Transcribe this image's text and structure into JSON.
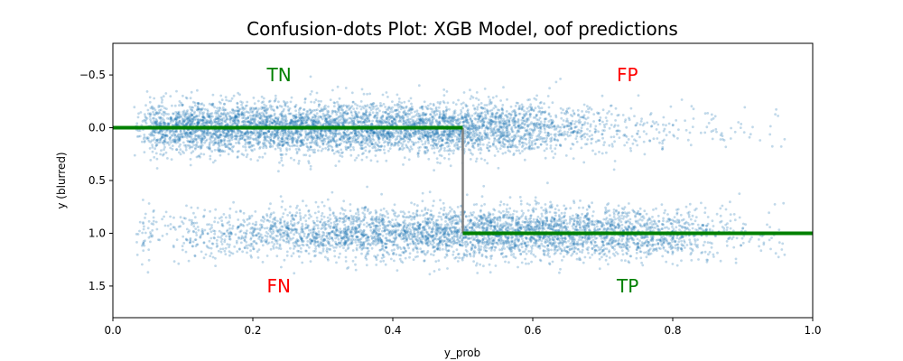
{
  "chart_data": {
    "type": "scatter",
    "title": "Confusion-dots Plot: XGB Model, oof predictions",
    "xlabel": "y_prob",
    "ylabel": "y (blurred)",
    "xlim": [
      0.0,
      1.0
    ],
    "ylim": [
      1.8,
      -0.8
    ],
    "y_inverted": true,
    "x_ticks": [
      "0.0",
      "0.2",
      "0.4",
      "0.6",
      "0.8",
      "1.0"
    ],
    "y_ticks": [
      "−0.5",
      "0.0",
      "0.5",
      "1.0",
      "1.5"
    ],
    "x_tick_values": [
      0.0,
      0.2,
      0.4,
      0.6,
      0.8,
      1.0
    ],
    "y_tick_values": [
      -0.5,
      0.0,
      0.5,
      1.0,
      1.5
    ],
    "grid": false,
    "point_color": "#1f77b4",
    "threshold_line": {
      "threshold": 0.5,
      "left_y": 0.0,
      "right_y": 1.0,
      "color": "#008000",
      "vertical_color": "#808080"
    },
    "quadrant_labels": [
      {
        "text": "TN",
        "x": 0.22,
        "y": -0.5,
        "color": "#008000"
      },
      {
        "text": "FP",
        "x": 0.72,
        "y": -0.5,
        "color": "#ff0000"
      },
      {
        "text": "FN",
        "x": 0.22,
        "y": 1.5,
        "color": "#ff0000"
      },
      {
        "text": "TP",
        "x": 0.72,
        "y": 1.5,
        "color": "#008000"
      }
    ],
    "series": [
      {
        "class": 0,
        "y_center": 0.0,
        "y_spread": 0.12,
        "x_range": [
          0.03,
          0.96
        ],
        "x_peak": 0.28,
        "note_distribution": "dense from 0.05 to 0.5, thinning out toward 0.95"
      },
      {
        "class": 1,
        "y_center": 1.0,
        "y_spread": 0.12,
        "x_range": [
          0.03,
          0.96
        ],
        "x_peak": 0.5,
        "note_distribution": "sparse near 0.05, dense from 0.35 to 0.8"
      }
    ]
  }
}
